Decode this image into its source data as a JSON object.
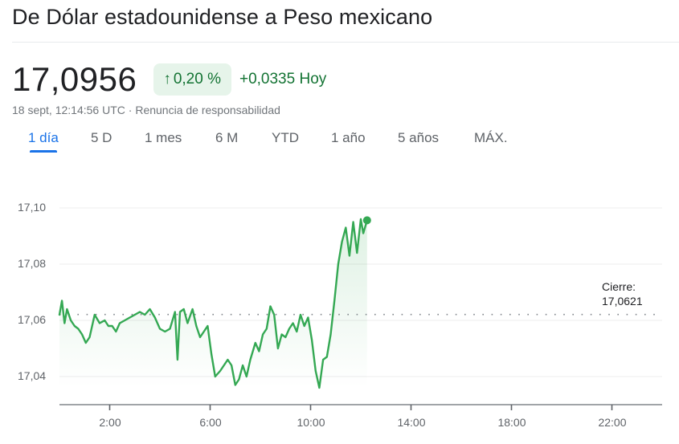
{
  "header": {
    "title": "De Dólar estadounidense a Peso mexicano"
  },
  "quote": {
    "price": "17,0956",
    "change_percent": "0,20 %",
    "change_arrow_icon": "arrow-up-icon",
    "change_absolute": "+0,0335 Hoy",
    "timestamp": "18 sept, 12:14:56 UTC",
    "separator": " · ",
    "disclaimer_link": "Renuncia de responsabilidad",
    "positive_color": "#137333",
    "badge_bg_color": "#e6f4ea"
  },
  "range_tabs": [
    {
      "label": "1 día",
      "active": true
    },
    {
      "label": "5 D",
      "active": false
    },
    {
      "label": "1 mes",
      "active": false
    },
    {
      "label": "6 M",
      "active": false
    },
    {
      "label": "YTD",
      "active": false
    },
    {
      "label": "1 año",
      "active": false
    },
    {
      "label": "5 años",
      "active": false
    },
    {
      "label": "MÁX.",
      "active": false
    }
  ],
  "chart": {
    "close_label": "Cierre:",
    "close_value": "17,0621",
    "line_color": "#34a853",
    "y_ticks": [
      "17,10",
      "17,08",
      "17,06",
      "17,04"
    ],
    "x_ticks": [
      "2:00",
      "6:00",
      "10:00",
      "14:00",
      "18:00",
      "22:00"
    ]
  },
  "chart_data": {
    "type": "line",
    "title": "De Dólar estadounidense a Peso mexicano",
    "xlabel": "",
    "ylabel": "",
    "x_unit": "hour (UTC)",
    "x_range": [
      0,
      24
    ],
    "ylim": [
      17.03,
      17.11
    ],
    "y_ticks": [
      17.04,
      17.06,
      17.08,
      17.1
    ],
    "x_ticks": [
      "2:00",
      "6:00",
      "10:00",
      "14:00",
      "18:00",
      "22:00"
    ],
    "grid": true,
    "legend": null,
    "reference_line": {
      "label": "Cierre",
      "value": 17.0621,
      "style": "dotted"
    },
    "last_point": {
      "x": 12.25,
      "y": 17.0956
    },
    "series": [
      {
        "name": "USD/MXN",
        "x": [
          0.0,
          0.1,
          0.2,
          0.3,
          0.45,
          0.6,
          0.75,
          0.9,
          1.05,
          1.2,
          1.4,
          1.6,
          1.8,
          1.95,
          2.1,
          2.25,
          2.4,
          2.6,
          2.8,
          3.0,
          3.2,
          3.4,
          3.6,
          3.8,
          4.0,
          4.2,
          4.4,
          4.6,
          4.7,
          4.8,
          4.95,
          5.1,
          5.3,
          5.45,
          5.6,
          5.75,
          5.9,
          6.05,
          6.2,
          6.4,
          6.55,
          6.7,
          6.85,
          7.0,
          7.15,
          7.3,
          7.45,
          7.6,
          7.8,
          7.95,
          8.1,
          8.25,
          8.4,
          8.55,
          8.7,
          8.85,
          9.0,
          9.15,
          9.3,
          9.45,
          9.6,
          9.75,
          9.9,
          10.05,
          10.2,
          10.35,
          10.5,
          10.65,
          10.8,
          10.95,
          11.1,
          11.25,
          11.4,
          11.55,
          11.7,
          11.85,
          12.0,
          12.1,
          12.25
        ],
        "y": [
          17.062,
          17.067,
          17.059,
          17.064,
          17.06,
          17.058,
          17.057,
          17.055,
          17.052,
          17.054,
          17.062,
          17.059,
          17.06,
          17.058,
          17.058,
          17.056,
          17.059,
          17.06,
          17.061,
          17.062,
          17.063,
          17.062,
          17.064,
          17.061,
          17.057,
          17.056,
          17.057,
          17.063,
          17.046,
          17.063,
          17.064,
          17.059,
          17.064,
          17.058,
          17.054,
          17.056,
          17.058,
          17.048,
          17.04,
          17.042,
          17.044,
          17.046,
          17.044,
          17.037,
          17.039,
          17.044,
          17.04,
          17.046,
          17.052,
          17.049,
          17.055,
          17.057,
          17.065,
          17.062,
          17.05,
          17.055,
          17.054,
          17.057,
          17.059,
          17.056,
          17.062,
          17.058,
          17.061,
          17.053,
          17.042,
          17.036,
          17.046,
          17.047,
          17.055,
          17.067,
          17.08,
          17.088,
          17.093,
          17.083,
          17.095,
          17.084,
          17.096,
          17.091,
          17.0956
        ]
      }
    ]
  }
}
